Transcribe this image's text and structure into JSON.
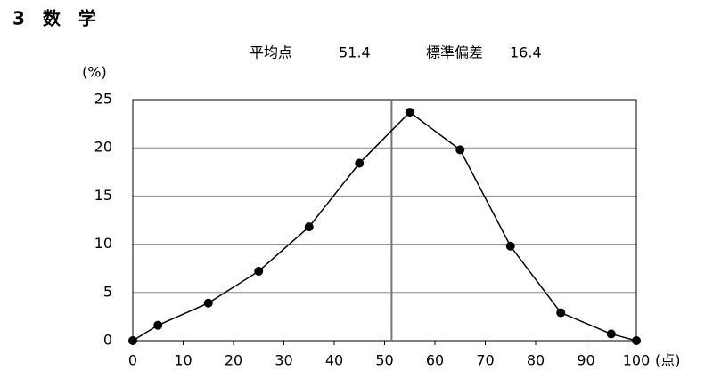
{
  "chart_data": {
    "type": "line",
    "title": "3　数　学",
    "mean_label": "平均点",
    "mean": 51.4,
    "sd_label": "標準偏差",
    "sd": 16.4,
    "y_unit": "(%)",
    "x_unit": "(点)",
    "x": [
      0,
      5,
      15,
      25,
      35,
      45,
      55,
      65,
      75,
      85,
      95,
      100
    ],
    "series": [
      {
        "color": "#000000",
        "values": [
          0,
          1.6,
          3.9,
          7.2,
          11.8,
          18.4,
          23.7,
          19.8,
          9.8,
          2.9,
          0.7,
          0
        ]
      }
    ],
    "xlim": [
      0,
      100
    ],
    "xticks": [
      0,
      10,
      20,
      30,
      40,
      50,
      60,
      70,
      80,
      90,
      100
    ],
    "ylim": [
      0,
      25
    ],
    "yticks": [
      0,
      5,
      10,
      15,
      20,
      25
    ],
    "grid": true
  }
}
